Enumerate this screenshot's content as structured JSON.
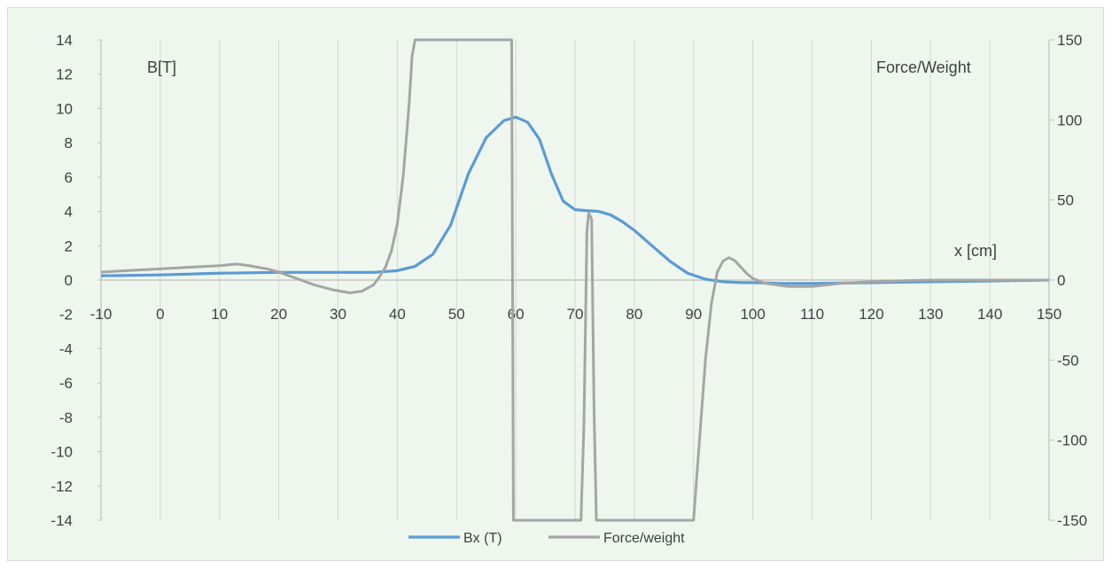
{
  "chart_data": {
    "type": "line",
    "title": "",
    "xlabel": "x [cm]",
    "ylabel_left": "B[T]",
    "ylabel_right": "Force/Weight",
    "xlim": [
      -10,
      150
    ],
    "ylim_left": [
      -14,
      14
    ],
    "ylim_right": [
      -150,
      150
    ],
    "x_ticks": [
      -10,
      0,
      10,
      20,
      30,
      40,
      50,
      60,
      70,
      80,
      90,
      100,
      110,
      120,
      130,
      140,
      150
    ],
    "y_left_ticks": [
      -14,
      -12,
      -10,
      -8,
      -6,
      -4,
      -2,
      0,
      2,
      4,
      6,
      8,
      10,
      12,
      14
    ],
    "y_right_ticks": [
      -150,
      -100,
      -50,
      0,
      50,
      100,
      150
    ],
    "grid": "vertical",
    "legend": "bottom",
    "series": [
      {
        "name": "Bx (T)",
        "axis": "left",
        "color": "#5b9bd5",
        "x": [
          -10,
          0,
          10,
          20,
          30,
          36,
          40,
          43,
          46,
          49,
          52,
          55,
          58,
          60,
          62,
          64,
          66,
          68,
          70,
          72,
          74,
          76,
          78,
          80,
          83,
          86,
          89,
          92,
          95,
          98,
          100,
          105,
          110,
          120,
          130,
          140,
          150
        ],
        "y": [
          0.25,
          0.3,
          0.4,
          0.45,
          0.45,
          0.45,
          0.55,
          0.8,
          1.5,
          3.2,
          6.2,
          8.3,
          9.3,
          9.5,
          9.2,
          8.2,
          6.2,
          4.6,
          4.1,
          4.05,
          4.0,
          3.8,
          3.4,
          2.9,
          2.0,
          1.1,
          0.4,
          0.05,
          -0.1,
          -0.15,
          -0.15,
          -0.2,
          -0.2,
          -0.15,
          -0.1,
          -0.05,
          0.0
        ]
      },
      {
        "name": "Force/weight",
        "axis": "right",
        "color": "#a5a5a5",
        "x": [
          -10,
          -5,
          0,
          5,
          10,
          13,
          15,
          18,
          20,
          23,
          26,
          29,
          32,
          34,
          36,
          37,
          38,
          39,
          40,
          41,
          42,
          42.5,
          43,
          55,
          59,
          59.3,
          59.6,
          60,
          68,
          71,
          71.5,
          72,
          72.3,
          72.8,
          73.2,
          73.6,
          74,
          76,
          85,
          90,
          91,
          92,
          93,
          94,
          95,
          96,
          97,
          98,
          99,
          100,
          102,
          104,
          106,
          108,
          110,
          115,
          120,
          130,
          140,
          150
        ],
        "y": [
          5,
          6,
          7,
          8,
          9,
          10,
          9,
          7,
          5,
          1,
          -3,
          -6,
          -8,
          -7,
          -3,
          2,
          8,
          18,
          35,
          65,
          110,
          140,
          150,
          150,
          150,
          150,
          -150,
          -150,
          -150,
          -150,
          -90,
          30,
          42,
          38,
          -80,
          -150,
          -150,
          -150,
          -150,
          -150,
          -100,
          -50,
          -15,
          5,
          12,
          14,
          12,
          8,
          4,
          1,
          -2,
          -3,
          -4,
          -4,
          -4,
          -2,
          -1,
          0,
          0,
          0
        ]
      }
    ]
  }
}
